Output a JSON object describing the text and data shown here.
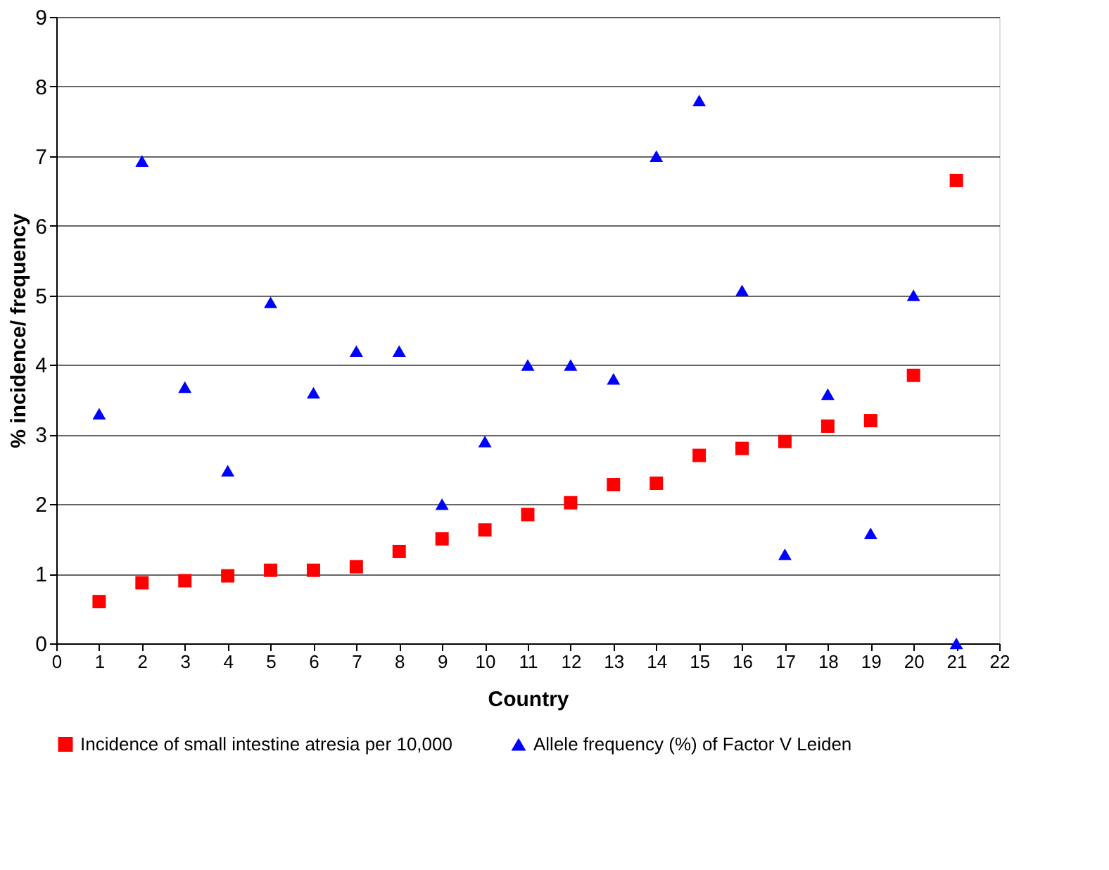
{
  "chart_data": {
    "type": "scatter",
    "xlabel": "Country",
    "ylabel": "% incidence/ frequency",
    "x": [
      1,
      2,
      3,
      4,
      5,
      6,
      7,
      8,
      9,
      10,
      11,
      12,
      13,
      14,
      15,
      16,
      17,
      18,
      19,
      20,
      21
    ],
    "series": [
      {
        "name": "Incidence of small intestine atresia per 10,000",
        "color": "#ff0000",
        "marker": "square",
        "values": [
          0.6,
          0.87,
          0.9,
          0.97,
          1.05,
          1.05,
          1.1,
          1.32,
          1.5,
          1.63,
          1.85,
          2.02,
          2.28,
          2.3,
          2.7,
          2.8,
          2.9,
          3.12,
          3.2,
          3.85,
          6.65
        ]
      },
      {
        "name": "Allele frequency (%) of Factor V Leiden",
        "color": "#0000ff",
        "marker": "triangle",
        "values": [
          3.3,
          6.93,
          3.68,
          2.48,
          4.9,
          3.6,
          4.2,
          4.2,
          2.0,
          2.9,
          4.0,
          4.0,
          3.8,
          7.0,
          7.8,
          5.07,
          1.28,
          3.58,
          1.58,
          5.0,
          0.0
        ]
      }
    ],
    "xlim": [
      0,
      22
    ],
    "xticks": [
      0,
      1,
      2,
      3,
      4,
      5,
      6,
      7,
      8,
      9,
      10,
      11,
      12,
      13,
      14,
      15,
      16,
      17,
      18,
      19,
      20,
      21,
      22
    ],
    "ylim": [
      0,
      9
    ],
    "yticks": [
      0,
      1,
      2,
      3,
      4,
      5,
      6,
      7,
      8,
      9
    ],
    "grid": "y",
    "legend": "bottom"
  }
}
